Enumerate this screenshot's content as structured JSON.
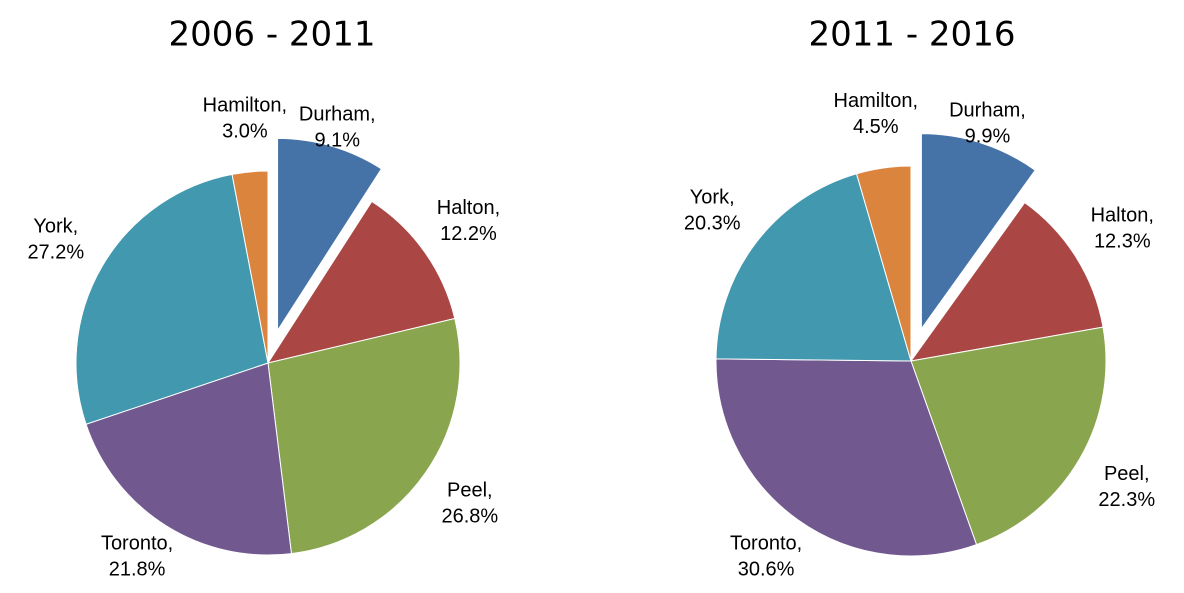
{
  "chart_data": [
    {
      "type": "pie",
      "title": "2006 - 2011",
      "categories": [
        "Durham,",
        "Halton,",
        "Peel,",
        "Toronto,",
        "York,",
        "Hamilton,"
      ],
      "values": [
        9.1,
        12.2,
        26.8,
        21.8,
        27.2,
        3.0
      ],
      "value_labels": [
        "9.1%",
        "12.2%",
        "26.8%",
        "21.8%",
        "27.2%",
        "3.0%"
      ],
      "colors": [
        "#4572a7",
        "#aa4643",
        "#89a54e",
        "#71588f",
        "#4198af",
        "#db843d"
      ]
    },
    {
      "type": "pie",
      "title": "2011 - 2016",
      "categories": [
        "Durham,",
        "Halton,",
        "Peel,",
        "Toronto,",
        "York,",
        "Hamilton,"
      ],
      "values": [
        9.9,
        12.3,
        22.3,
        30.6,
        20.3,
        4.5
      ],
      "value_labels": [
        "9.9%",
        "12.3%",
        "22.3%",
        "30.6%",
        "20.3%",
        "4.5%"
      ],
      "colors": [
        "#4572a7",
        "#aa4643",
        "#89a54e",
        "#71588f",
        "#4198af",
        "#db843d"
      ]
    }
  ]
}
